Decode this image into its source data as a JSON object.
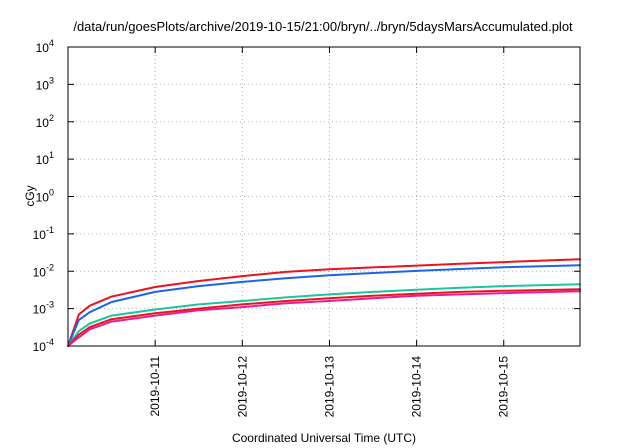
{
  "chart_data": {
    "type": "line",
    "title": "/data/run/goesPlots/archive/2019-10-15/21:00/bryn/../bryn/5daysMarsAccumulated.plot",
    "xlabel": "Coordinated Universal Time (UTC)",
    "ylabel": "cGy",
    "y_scale": "log",
    "ylim": [
      0.0001,
      10000
    ],
    "xlim": [
      "2019-10-10T00:00",
      "2019-10-15T21:00"
    ],
    "x_ticks": [
      "2019-10-11",
      "2019-10-12",
      "2019-10-13",
      "2019-10-14",
      "2019-10-15"
    ],
    "y_ticks": [
      {
        "base": "10",
        "exp": "-4"
      },
      {
        "base": "10",
        "exp": "-3"
      },
      {
        "base": "10",
        "exp": "-2"
      },
      {
        "base": "10",
        "exp": "-1"
      },
      {
        "base": "10",
        "exp": "0"
      },
      {
        "base": "10",
        "exp": "1"
      },
      {
        "base": "10",
        "exp": "2"
      },
      {
        "base": "10",
        "exp": "3"
      },
      {
        "base": "10",
        "exp": "4"
      }
    ],
    "grid": true,
    "series": [
      {
        "color": "#e8141e",
        "x": [
          "2019-10-10T00:00",
          "2019-10-10T03:00",
          "2019-10-10T06:00",
          "2019-10-10T12:00",
          "2019-10-11T00:00",
          "2019-10-11T12:00",
          "2019-10-12T00:00",
          "2019-10-12T12:00",
          "2019-10-13T00:00",
          "2019-10-13T12:00",
          "2019-10-14T00:00",
          "2019-10-14T12:00",
          "2019-10-15T00:00",
          "2019-10-15T21:00"
        ],
        "y": [
          0.0001,
          0.0007,
          0.0012,
          0.0021,
          0.0038,
          0.0055,
          0.0074,
          0.0096,
          0.0113,
          0.0127,
          0.0142,
          0.0158,
          0.0176,
          0.021
        ]
      },
      {
        "color": "#1e64e6",
        "x": [
          "2019-10-10T00:00",
          "2019-10-10T03:00",
          "2019-10-10T06:00",
          "2019-10-10T12:00",
          "2019-10-11T00:00",
          "2019-10-11T12:00",
          "2019-10-12T00:00",
          "2019-10-12T12:00",
          "2019-10-13T00:00",
          "2019-10-13T12:00",
          "2019-10-14T00:00",
          "2019-10-14T12:00",
          "2019-10-15T00:00",
          "2019-10-15T21:00"
        ],
        "y": [
          0.0001,
          0.0005,
          0.0008,
          0.0015,
          0.0028,
          0.004,
          0.0052,
          0.0065,
          0.0078,
          0.009,
          0.0102,
          0.0115,
          0.0128,
          0.0145
        ]
      },
      {
        "color": "#1ec3a0",
        "x": [
          "2019-10-10T00:00",
          "2019-10-10T03:00",
          "2019-10-10T06:00",
          "2019-10-10T12:00",
          "2019-10-11T00:00",
          "2019-10-11T12:00",
          "2019-10-12T00:00",
          "2019-10-12T12:00",
          "2019-10-13T00:00",
          "2019-10-13T12:00",
          "2019-10-14T00:00",
          "2019-10-14T12:00",
          "2019-10-15T00:00",
          "2019-10-15T21:00"
        ],
        "y": [
          0.0001,
          0.00025,
          0.0004,
          0.00065,
          0.00095,
          0.0013,
          0.0016,
          0.002,
          0.0024,
          0.0028,
          0.0032,
          0.0036,
          0.004,
          0.0045
        ]
      },
      {
        "color": "#e8141e",
        "x": [
          "2019-10-10T00:00",
          "2019-10-10T03:00",
          "2019-10-10T06:00",
          "2019-10-10T12:00",
          "2019-10-11T00:00",
          "2019-10-11T12:00",
          "2019-10-12T00:00",
          "2019-10-12T12:00",
          "2019-10-13T00:00",
          "2019-10-13T12:00",
          "2019-10-14T00:00",
          "2019-10-14T12:00",
          "2019-10-15T00:00",
          "2019-10-15T21:00"
        ],
        "y": [
          0.0001,
          0.0002,
          0.00032,
          0.00052,
          0.00075,
          0.001,
          0.0013,
          0.0016,
          0.0019,
          0.0022,
          0.0025,
          0.0028,
          0.003,
          0.0033
        ]
      },
      {
        "color": "#e61e96",
        "x": [
          "2019-10-10T00:00",
          "2019-10-10T03:00",
          "2019-10-10T06:00",
          "2019-10-10T12:00",
          "2019-10-11T00:00",
          "2019-10-11T12:00",
          "2019-10-12T00:00",
          "2019-10-12T12:00",
          "2019-10-13T00:00",
          "2019-10-13T12:00",
          "2019-10-14T00:00",
          "2019-10-14T12:00",
          "2019-10-15T00:00",
          "2019-10-15T21:00"
        ],
        "y": [
          0.0001,
          0.00017,
          0.00028,
          0.00045,
          0.00065,
          0.0009,
          0.0011,
          0.0014,
          0.0016,
          0.0019,
          0.0022,
          0.0024,
          0.0026,
          0.0029
        ]
      }
    ]
  }
}
